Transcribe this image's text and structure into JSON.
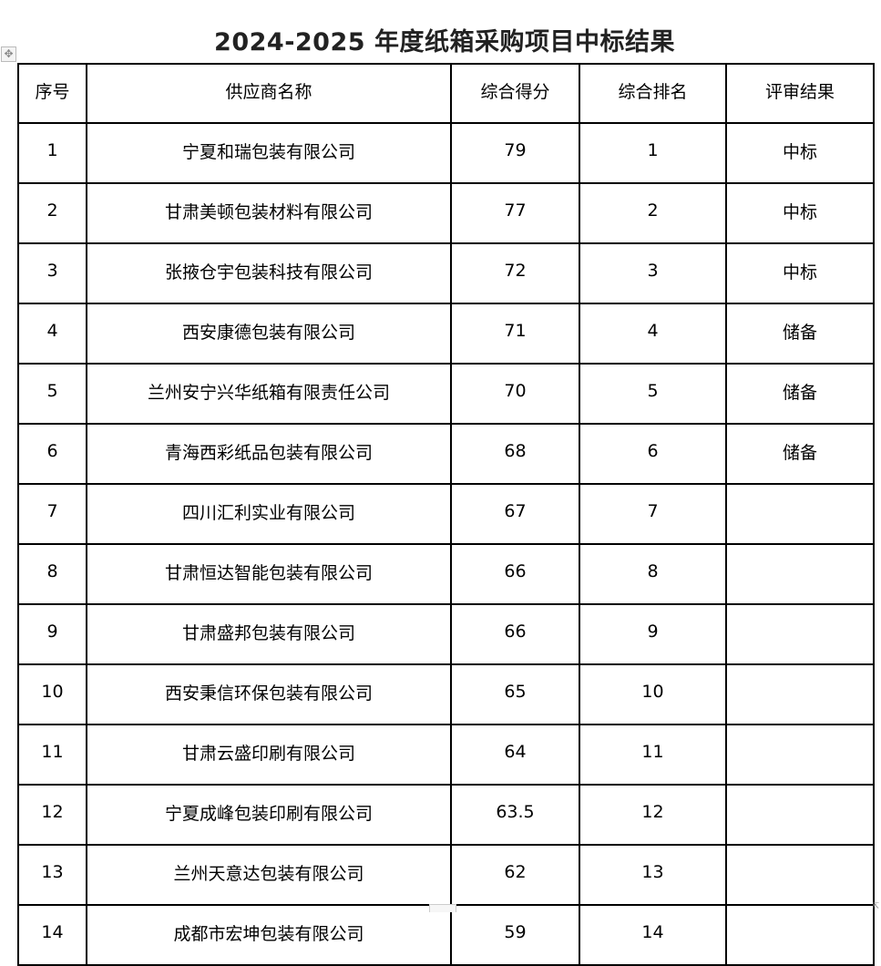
{
  "title": "2024-2025 年度纸箱采购项目中标结果",
  "headers": [
    "序号",
    "供应商名称",
    "综合得分",
    "综合排名",
    "评审结果"
  ],
  "rows": [
    [
      "1",
      "宁夏和瑞包装有限公司",
      "79",
      "1",
      "中标"
    ],
    [
      "2",
      "甘肃美顿包装材料有限公司",
      "77",
      "2",
      "中标"
    ],
    [
      "3",
      "张掖仓宇包装科技有限公司",
      "72",
      "3",
      "中标"
    ],
    [
      "4",
      "西安康德包装有限公司",
      "71",
      "4",
      "储备"
    ],
    [
      "5",
      "兰州安宁兴华纸箱有限责任公司",
      "70",
      "5",
      "储备"
    ],
    [
      "6",
      "青海西彩纸品包装有限公司",
      "68",
      "6",
      "储备"
    ],
    [
      "7",
      "四川汇利实业有限公司",
      "67",
      "7",
      ""
    ],
    [
      "8",
      "甘肃恒达智能包装有限公司",
      "66",
      "8",
      ""
    ],
    [
      "9",
      "甘肃盛邦包装有限公司",
      "66",
      "9",
      ""
    ],
    [
      "10",
      "西安秉信环保包装有限公司",
      "65",
      "10",
      ""
    ],
    [
      "11",
      "甘肃云盛印刷有限公司",
      "64",
      "11",
      ""
    ],
    [
      "12",
      "宁夏成峰包装印刷有限公司",
      "63.5",
      "12",
      ""
    ],
    [
      "13",
      "兰州天意达包装有限公司",
      "62",
      "13",
      ""
    ],
    [
      "14",
      "成都市宏坤包装有限公司",
      "59",
      "14",
      ""
    ]
  ]
}
